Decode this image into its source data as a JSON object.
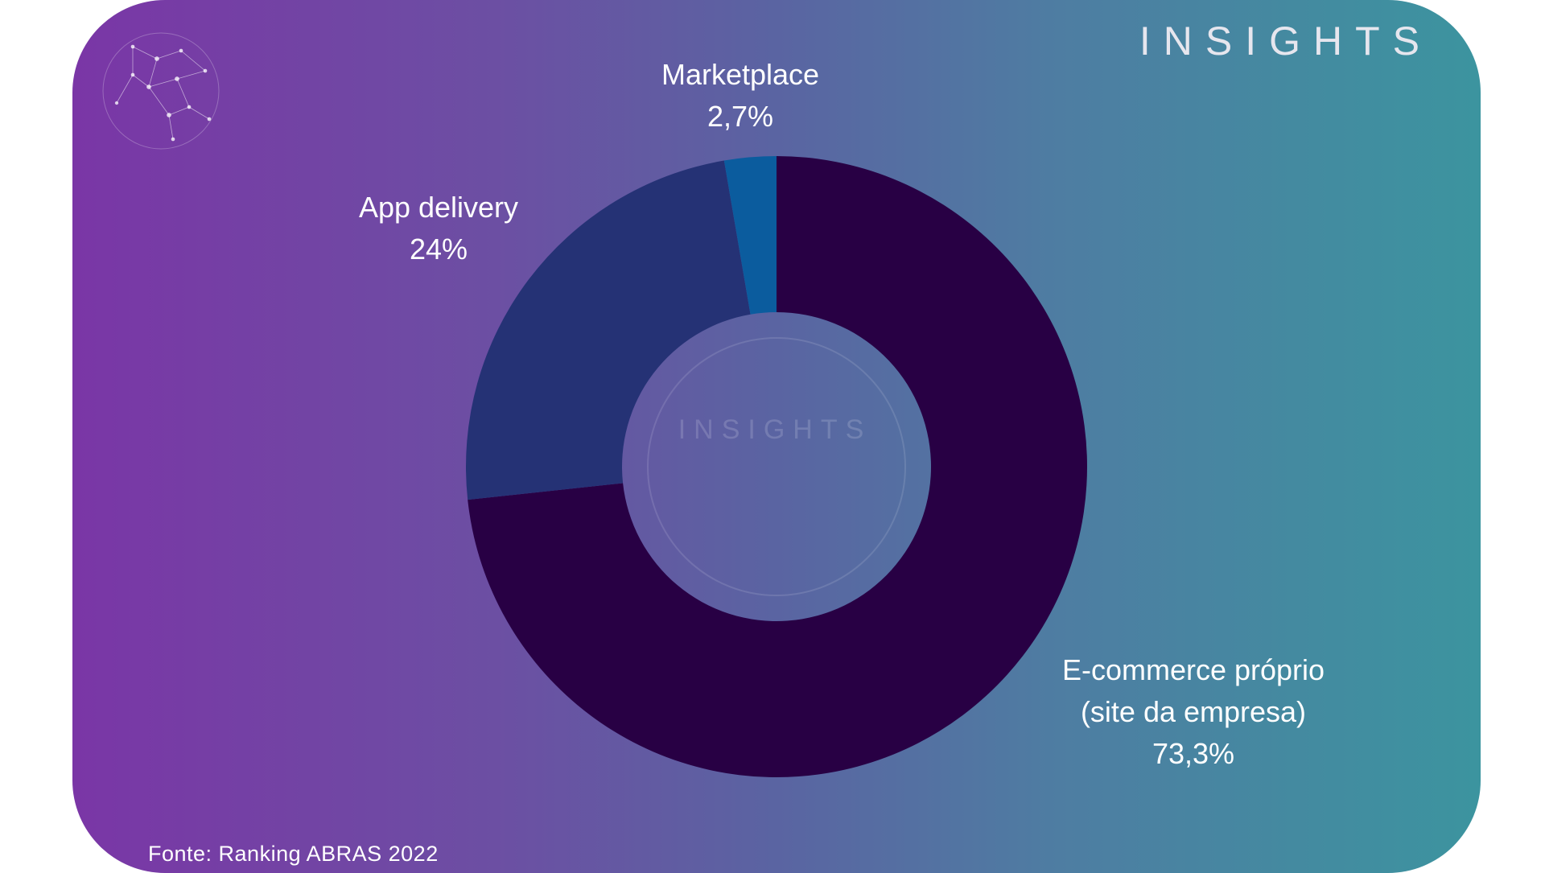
{
  "brand": {
    "name": "INSIGHTS",
    "watermark": "INSIGHTS"
  },
  "source": "Fonte: Ranking ABRAS 2022",
  "colors": {
    "background_left": "#7a36a6",
    "background_right": "#3c949f",
    "ecommerce": "#280044",
    "app_delivery": "#253275",
    "marketplace": "#0b5c9e"
  },
  "chart_data": {
    "type": "pie",
    "style": "donut",
    "categories": [
      "E-commerce próprio (site da empresa)",
      "App delivery",
      "Marketplace"
    ],
    "values": [
      73.3,
      24,
      2.7
    ],
    "unit": "%",
    "labels": [
      {
        "lines": [
          "E-commerce próprio",
          "(site da empresa)"
        ],
        "value": "73,3%",
        "color_key": "ecommerce"
      },
      {
        "lines": [
          "App delivery"
        ],
        "value": "24%",
        "color_key": "app_delivery"
      },
      {
        "lines": [
          "Marketplace"
        ],
        "value": "2,7%",
        "color_key": "marketplace"
      }
    ],
    "legend": "none"
  }
}
